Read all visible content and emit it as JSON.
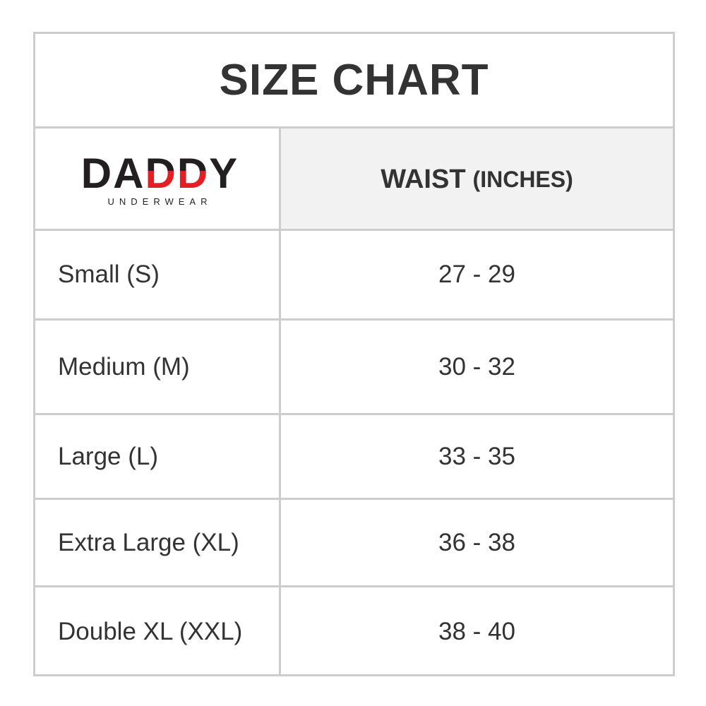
{
  "title": "SIZE CHART",
  "logo": {
    "letters": [
      "D",
      "A",
      "D",
      "D",
      "Y"
    ],
    "sub": "UNDERWEAR",
    "brand_colors": {
      "dark": "#231f20",
      "red": "#e31e24"
    }
  },
  "header": {
    "waist": "WAIST",
    "unit": "(INCHES)"
  },
  "rows": [
    {
      "size": "Small (S)",
      "waist": "27 - 29"
    },
    {
      "size": "Medium (M)",
      "waist": "30 - 32"
    },
    {
      "size": "Large (L)",
      "waist": "33 - 35"
    },
    {
      "size": "Extra Large (XL)",
      "waist": "36 - 38"
    },
    {
      "size": "Double XL (XXL)",
      "waist": "38 - 40"
    }
  ]
}
